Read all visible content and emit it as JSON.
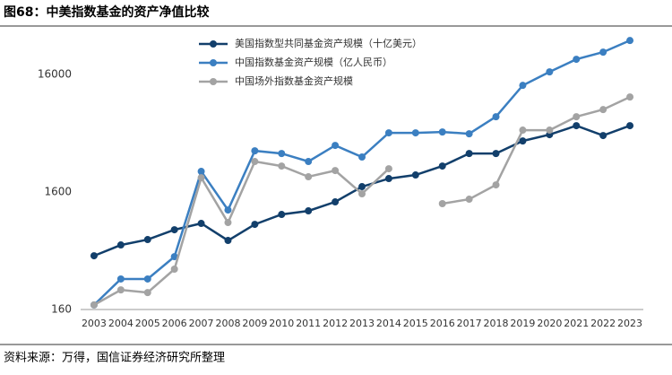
{
  "chart_data": {
    "type": "line",
    "title": "图68：中美指数基金的资产净值比较",
    "source": "资料来源：万得，国信证券经济研究所整理",
    "categories": [
      "2003",
      "2004",
      "2005",
      "2006",
      "2007",
      "2008",
      "2009",
      "2010",
      "2011",
      "2012",
      "2013",
      "2014",
      "2015",
      "2016",
      "2017",
      "2018",
      "2019",
      "2020",
      "2021",
      "2022",
      "2023"
    ],
    "series": [
      {
        "name": "美国指数型共同基金资产规模（十亿美元）",
        "color": "#123f6b",
        "values": [
          459,
          567,
          630,
          764,
          865,
          619,
          849,
          1031,
          1106,
          1319,
          1778,
          2083,
          2235,
          2663,
          3404,
          3404,
          4355,
          4928,
          5875,
          4842,
          5875
        ]
      },
      {
        "name": "中国指数基金资产规模（亿人民币）",
        "color": "#3b7fc1",
        "values": [
          175,
          291,
          291,
          451,
          2399,
          1125,
          3589,
          3404,
          2911,
          3990,
          3177,
          5105,
          5105,
          5190,
          5012,
          6998,
          12942,
          16866,
          21577,
          24830,
          31190
        ]
      },
      {
        "name": "中国场外指数基金资产规模",
        "color": "#a3a3a3",
        "values": [
          175,
          235,
          223,
          353,
          2118,
          880,
          2911,
          2663,
          2158,
          2439,
          1545,
          2525,
          null,
          1274,
          1390,
          1841,
          5383,
          5383,
          6998,
          8054,
          10307
        ]
      }
    ],
    "log_scale": true,
    "ylim": [
      160,
      40000
    ],
    "yticks": [
      160,
      1600,
      16000
    ],
    "grid": false,
    "legend": "top-left"
  }
}
